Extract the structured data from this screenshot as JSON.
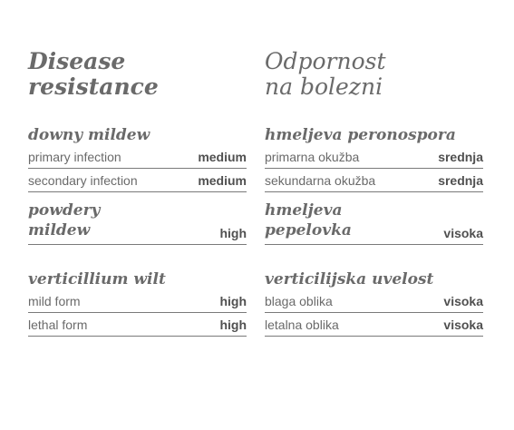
{
  "en": {
    "title": [
      "Disease",
      "resistance"
    ],
    "downy": {
      "heading": "downy mildew",
      "rows": [
        {
          "label": "primary infection",
          "value": "medium"
        },
        {
          "label": "secondary infection",
          "value": "medium"
        }
      ]
    },
    "powdery": {
      "heading": [
        "powdery",
        "mildew"
      ],
      "value": "high"
    },
    "verticillium": {
      "heading": "verticillium wilt",
      "rows": [
        {
          "label": "mild form",
          "value": "high"
        },
        {
          "label": "lethal form",
          "value": "high"
        }
      ]
    }
  },
  "sl": {
    "title": [
      "Odpornost",
      "na bolezni"
    ],
    "downy": {
      "heading": "hmeljeva peronospora",
      "rows": [
        {
          "label": "primarna okužba",
          "value": "srednja"
        },
        {
          "label": "sekundarna okužba",
          "value": "srednja"
        }
      ]
    },
    "powdery": {
      "heading": [
        "hmeljeva",
        "pepelovka"
      ],
      "value": "visoka"
    },
    "verticillium": {
      "heading": "verticilijska uvelost",
      "rows": [
        {
          "label": "blaga oblika",
          "value": "visoka"
        },
        {
          "label": "letalna oblika",
          "value": "visoka"
        }
      ]
    }
  }
}
